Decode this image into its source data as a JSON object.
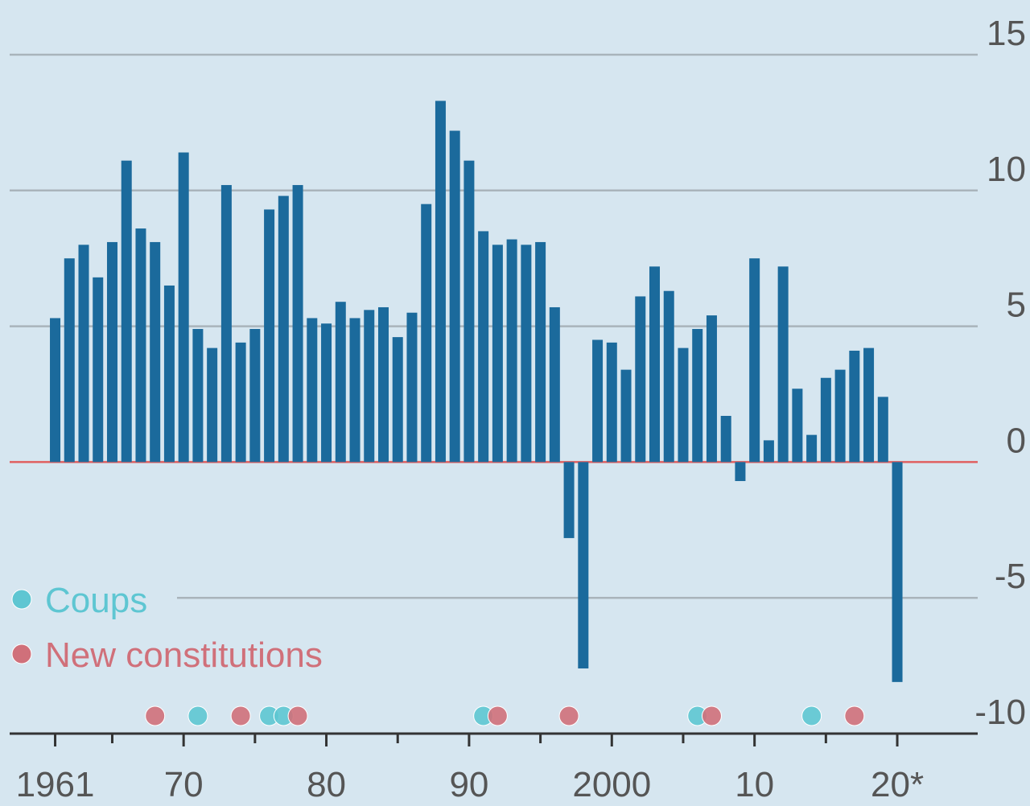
{
  "chart_data": {
    "type": "bar",
    "categories": [
      1961,
      1962,
      1963,
      1964,
      1965,
      1966,
      1967,
      1968,
      1969,
      1970,
      1971,
      1972,
      1973,
      1974,
      1975,
      1976,
      1977,
      1978,
      1979,
      1980,
      1981,
      1982,
      1983,
      1984,
      1985,
      1986,
      1987,
      1988,
      1989,
      1990,
      1991,
      1992,
      1993,
      1994,
      1995,
      1996,
      1997,
      1998,
      1999,
      2000,
      2001,
      2002,
      2003,
      2004,
      2005,
      2006,
      2007,
      2008,
      2009,
      2010,
      2011,
      2012,
      2013,
      2014,
      2015,
      2016,
      2017,
      2018,
      2019,
      2020
    ],
    "values": [
      5.3,
      7.5,
      8.0,
      6.8,
      8.1,
      11.1,
      8.6,
      8.1,
      6.5,
      11.4,
      4.9,
      4.2,
      10.2,
      4.4,
      4.9,
      9.3,
      9.8,
      10.2,
      5.3,
      5.1,
      5.9,
      5.3,
      5.6,
      5.7,
      4.6,
      5.5,
      9.5,
      13.3,
      12.2,
      11.1,
      8.5,
      8.0,
      8.2,
      8.0,
      8.1,
      5.7,
      -2.8,
      -7.6,
      4.5,
      4.4,
      3.4,
      6.1,
      7.2,
      6.3,
      4.2,
      4.9,
      5.4,
      1.7,
      -0.7,
      7.5,
      0.8,
      7.2,
      2.7,
      1.0,
      3.1,
      3.4,
      4.1,
      4.2,
      2.4,
      -8.1
    ],
    "color": "#1b6a9c",
    "events": [
      {
        "name": "Coups",
        "color": "#5ec6d2",
        "x": [
          1971,
          1976,
          1977,
          1991,
          2006,
          2014
        ]
      },
      {
        "name": "New constitutions",
        "color": "#d0707a",
        "x": [
          1968,
          1974,
          1978,
          1992,
          1997,
          2007,
          2017
        ]
      }
    ],
    "xlim": [
      1957.7,
      2029.3
    ],
    "xticks": [
      1961,
      {
        "value": 1970,
        "label": "70"
      },
      {
        "value": 1980,
        "label": "80"
      },
      {
        "value": 1990,
        "label": "90"
      },
      2000,
      {
        "value": 2010,
        "label": "10"
      },
      {
        "value": 2020,
        "label": "20*"
      }
    ],
    "xminorticks": [
      1965,
      1975,
      1985,
      1995,
      2005,
      2015
    ],
    "ylim": [
      -10,
      15
    ],
    "yticks": [
      15,
      10,
      5,
      0,
      -5,
      -10
    ],
    "grid": true
  }
}
